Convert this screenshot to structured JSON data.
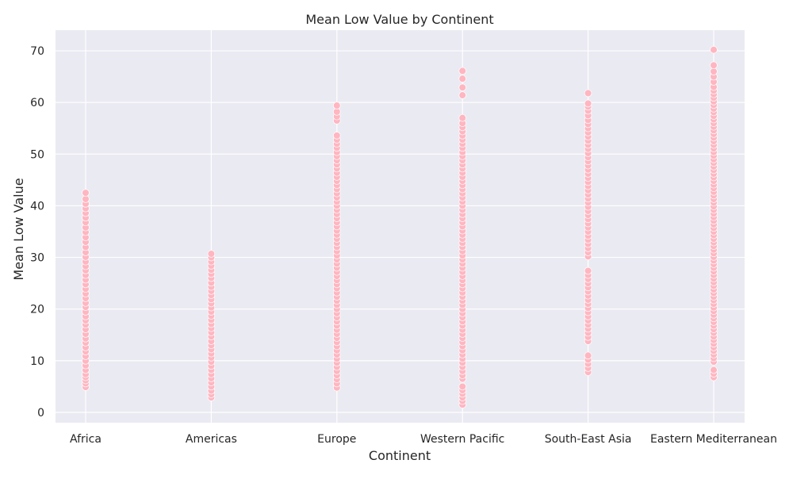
{
  "chart_data": {
    "type": "scatter",
    "title": "Mean Low Value by Continent",
    "xlabel": "Continent",
    "ylabel": "Mean Low Value",
    "categories": [
      "Africa",
      "Americas",
      "Europe",
      "Western Pacific",
      "South-East Asia",
      "Eastern Mediterranean"
    ],
    "ylim": [
      -2,
      74
    ],
    "yticks": [
      0,
      10,
      20,
      30,
      40,
      50,
      60,
      70
    ],
    "grid": true,
    "point_color": "#ffb6c1",
    "background_color": "#eaeaf2",
    "series": [
      {
        "category": "Africa",
        "values": [
          4.9,
          5.6,
          6.2,
          6.8,
          7.4,
          8.2,
          9.1,
          10.0,
          10.9,
          11.8,
          12.6,
          13.5,
          14.3,
          15.2,
          16.1,
          17.0,
          17.8,
          18.6,
          19.5,
          20.4,
          21.2,
          22.1,
          23.0,
          23.9,
          24.8,
          25.7,
          26.6,
          27.5,
          28.3,
          29.2,
          30.1,
          31.0,
          32.0,
          33.0,
          33.9,
          34.9,
          35.8,
          36.8,
          37.7,
          38.6,
          39.5,
          40.4,
          41.3,
          42.5
        ]
      },
      {
        "category": "Americas",
        "values": [
          2.9,
          3.5,
          4.2,
          5.0,
          5.8,
          6.6,
          7.4,
          8.2,
          9.0,
          9.8,
          10.6,
          11.4,
          12.2,
          13.0,
          13.8,
          14.7,
          15.5,
          16.3,
          17.1,
          17.9,
          18.7,
          19.5,
          20.3,
          21.1,
          21.9,
          22.7,
          23.5,
          24.3,
          25.1,
          26.0,
          26.8,
          27.6,
          28.4,
          29.2,
          30.0,
          30.7
        ]
      },
      {
        "category": "Europe",
        "values": [
          4.8,
          5.6,
          6.4,
          7.2,
          8.0,
          8.8,
          9.6,
          10.4,
          11.2,
          12.0,
          12.8,
          13.6,
          14.4,
          15.2,
          16.0,
          16.8,
          17.6,
          18.4,
          19.2,
          20.0,
          20.8,
          21.6,
          22.4,
          23.2,
          24.0,
          24.8,
          25.6,
          26.4,
          27.2,
          28.0,
          28.8,
          29.6,
          30.4,
          31.2,
          32.0,
          32.8,
          33.6,
          34.4,
          35.2,
          36.0,
          36.8,
          37.6,
          38.4,
          39.2,
          40.0,
          40.8,
          41.6,
          42.4,
          43.2,
          44.0,
          44.8,
          45.6,
          46.4,
          47.2,
          48.0,
          48.8,
          49.6,
          50.4,
          51.2,
          52.0,
          52.8,
          53.6,
          56.5,
          57.3,
          58.2,
          59.4
        ]
      },
      {
        "category": "Western Pacific",
        "values": [
          1.5,
          2.2,
          2.9,
          3.6,
          4.3,
          5.0,
          6.5,
          7.2,
          8.0,
          8.8,
          9.6,
          10.4,
          11.2,
          12.0,
          12.8,
          13.6,
          14.4,
          15.2,
          16.0,
          16.8,
          17.6,
          18.4,
          19.2,
          20.0,
          20.8,
          21.6,
          22.4,
          23.2,
          24.0,
          24.8,
          25.6,
          26.4,
          27.2,
          28.0,
          28.8,
          29.6,
          30.4,
          31.2,
          32.0,
          32.8,
          33.6,
          34.4,
          35.2,
          36.0,
          36.8,
          37.6,
          38.4,
          39.2,
          40.0,
          40.8,
          41.6,
          42.4,
          43.2,
          44.0,
          44.8,
          45.6,
          46.4,
          47.2,
          48.0,
          48.8,
          49.6,
          50.4,
          51.2,
          52.0,
          52.8,
          53.6,
          54.4,
          55.2,
          56.0,
          57.0,
          61.4,
          62.9,
          64.6,
          66.1
        ]
      },
      {
        "category": "South-East Asia",
        "values": [
          7.8,
          8.6,
          9.4,
          10.2,
          11.0,
          13.8,
          14.6,
          15.4,
          16.2,
          17.0,
          17.8,
          18.6,
          19.4,
          20.2,
          21.0,
          21.8,
          22.6,
          23.4,
          24.2,
          25.0,
          25.8,
          26.6,
          27.4,
          30.2,
          31.0,
          31.8,
          32.6,
          33.4,
          34.2,
          35.0,
          35.8,
          36.6,
          37.4,
          38.2,
          39.0,
          39.8,
          40.6,
          41.4,
          42.2,
          43.0,
          43.8,
          44.6,
          45.4,
          46.2,
          47.0,
          47.8,
          48.6,
          49.4,
          50.2,
          51.0,
          51.8,
          52.6,
          53.4,
          54.2,
          55.0,
          55.8,
          56.6,
          57.5,
          58.4,
          59.2,
          59.8,
          61.8
        ]
      },
      {
        "category": "Eastern Mediterranean",
        "values": [
          6.8,
          7.5,
          8.2,
          9.8,
          10.5,
          11.2,
          11.9,
          12.6,
          13.3,
          14.0,
          14.7,
          15.4,
          16.1,
          16.8,
          17.5,
          18.2,
          18.9,
          19.6,
          20.3,
          21.0,
          21.7,
          22.4,
          23.1,
          23.8,
          24.5,
          25.2,
          25.9,
          26.6,
          27.3,
          28.0,
          28.7,
          29.4,
          30.1,
          30.8,
          31.5,
          32.2,
          32.9,
          33.6,
          34.3,
          35.0,
          35.7,
          36.4,
          37.1,
          37.8,
          38.5,
          39.2,
          39.9,
          40.6,
          41.3,
          42.0,
          42.7,
          43.4,
          44.1,
          44.8,
          45.5,
          46.2,
          46.9,
          47.6,
          48.3,
          49.0,
          49.7,
          50.4,
          51.1,
          51.8,
          52.5,
          53.2,
          53.9,
          54.6,
          55.3,
          56.0,
          56.7,
          57.4,
          58.1,
          58.8,
          59.5,
          60.2,
          60.9,
          61.6,
          62.3,
          63.0,
          64.0,
          65.0,
          66.0,
          67.2,
          70.2
        ]
      }
    ]
  }
}
